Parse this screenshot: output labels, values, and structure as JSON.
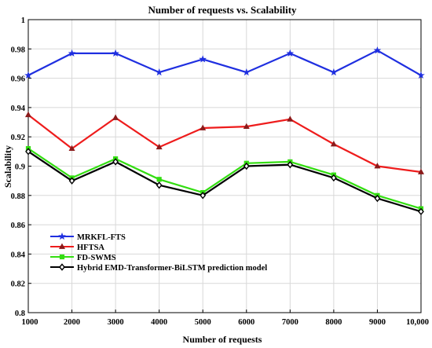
{
  "chart_data": {
    "type": "line",
    "title": "Number of requests vs. Scalability",
    "xlabel": "Number of requests",
    "ylabel": "Scalability",
    "x": [
      1000,
      2000,
      3000,
      4000,
      5000,
      6000,
      7000,
      8000,
      9000,
      10000
    ],
    "x_tick_labels": [
      "1000",
      "2000",
      "3000",
      "4000",
      "5000",
      "6000",
      "7000",
      "8000",
      "9000",
      "10,000"
    ],
    "ylim": [
      0.8,
      1.0
    ],
    "y_ticks": [
      0.8,
      0.82,
      0.84,
      0.86,
      0.88,
      0.9,
      0.92,
      0.94,
      0.96,
      0.98,
      1
    ],
    "y_tick_labels": [
      "0.8",
      "0.82",
      "0.84",
      "0.86",
      "0.88",
      "0.9",
      "0.92",
      "0.94",
      "0.96",
      "0.98",
      "1"
    ],
    "grid": true,
    "legend_position": "bottom-left",
    "series": [
      {
        "name": "MRKFL-FTS",
        "color": "#1f2fe0",
        "marker": "star",
        "values": [
          0.962,
          0.977,
          0.977,
          0.964,
          0.973,
          0.964,
          0.977,
          0.964,
          0.979,
          0.962
        ]
      },
      {
        "name": "HFTSA",
        "color": "#ee1c1c",
        "marker": "triangle",
        "values": [
          0.935,
          0.912,
          0.933,
          0.913,
          0.926,
          0.927,
          0.932,
          0.915,
          0.9,
          0.896
        ]
      },
      {
        "name": "FD-SWMS",
        "color": "#33dd11",
        "marker": "square",
        "values": [
          0.912,
          0.892,
          0.905,
          0.891,
          0.882,
          0.902,
          0.903,
          0.894,
          0.88,
          0.871
        ]
      },
      {
        "name": "Hybrid EMD-Transformer-BiLSTM prediction model",
        "color": "#000000",
        "marker": "diamond",
        "values": [
          0.91,
          0.89,
          0.903,
          0.887,
          0.88,
          0.9,
          0.901,
          0.892,
          0.878,
          0.869
        ]
      }
    ]
  }
}
